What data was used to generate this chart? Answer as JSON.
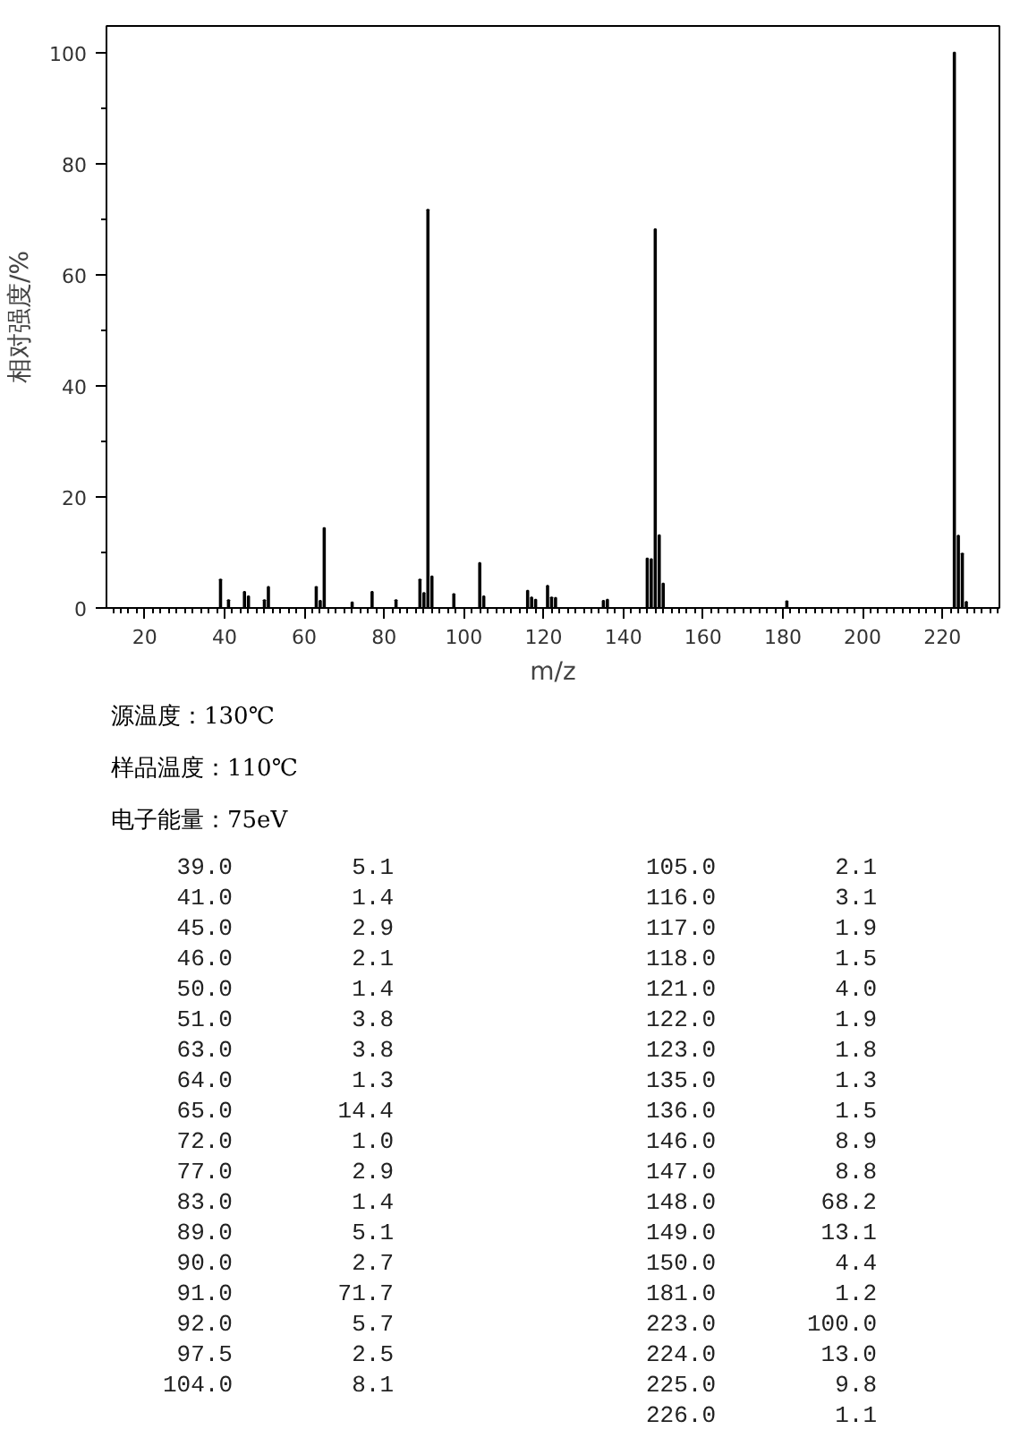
{
  "chart_data": [
    {
      "type": "bar",
      "xlabel": "m/z",
      "ylabel": "相对强度/%",
      "x": [
        39.0,
        41.0,
        45.0,
        46.0,
        50.0,
        51.0,
        63.0,
        64.0,
        65.0,
        72.0,
        77.0,
        83.0,
        89.0,
        90.0,
        91.0,
        92.0,
        97.5,
        104.0,
        105.0,
        116.0,
        117.0,
        118.0,
        121.0,
        122.0,
        123.0,
        135.0,
        136.0,
        146.0,
        147.0,
        148.0,
        149.0,
        150.0,
        181.0,
        223.0,
        224.0,
        225.0,
        226.0
      ],
      "values": [
        5.1,
        1.4,
        2.9,
        2.1,
        1.4,
        3.8,
        3.8,
        1.3,
        14.4,
        1.0,
        2.9,
        1.4,
        5.1,
        2.7,
        71.7,
        5.7,
        2.5,
        8.1,
        2.1,
        3.1,
        1.9,
        1.5,
        4.0,
        1.9,
        1.8,
        1.3,
        1.5,
        8.9,
        8.8,
        68.2,
        13.1,
        4.4,
        1.2,
        100.0,
        13.0,
        9.8,
        1.1
      ],
      "color": "#000000",
      "xlim": [
        10.4,
        234.3
      ],
      "ylim": [
        0,
        104.8
      ],
      "xticks": [
        20,
        40,
        60,
        80,
        100,
        120,
        140,
        160,
        180,
        200,
        220
      ],
      "yticks": [
        0,
        20,
        40,
        60,
        80,
        100
      ],
      "grid": false,
      "annotations": [
        "源温度：130℃",
        "样品温度：110℃",
        "电子能量：75eV"
      ]
    },
    {
      "type": "other",
      "annotations": [
        "39.0",
        "5.1",
        "41.0",
        "1.4",
        "45.0",
        "2.9",
        "46.0",
        "2.1",
        "50.0",
        "1.4",
        "51.0",
        "3.8",
        "63.0",
        "3.8",
        "64.0",
        "1.3",
        "65.0",
        "14.4",
        "72.0",
        "1.0",
        "77.0",
        "2.9",
        "83.0",
        "1.4",
        "89.0",
        "5.1",
        "90.0",
        "2.7",
        "91.0",
        "71.7",
        "92.0",
        "5.7",
        "97.5",
        "2.5",
        "104.0",
        "8.1",
        "105.0",
        "2.1",
        "116.0",
        "3.1",
        "117.0",
        "1.9",
        "118.0",
        "1.5",
        "121.0",
        "4.0",
        "122.0",
        "1.9",
        "123.0",
        "1.8",
        "135.0",
        "1.3",
        "136.0",
        "1.5",
        "146.0",
        "8.9",
        "147.0",
        "8.8",
        "148.0",
        "68.2",
        "149.0",
        "13.1",
        "150.0",
        "4.4",
        "181.0",
        "1.2",
        "223.0",
        "100.0",
        "224.0",
        "13.0",
        "225.0",
        "9.8",
        "226.0",
        "1.1"
      ]
    }
  ]
}
